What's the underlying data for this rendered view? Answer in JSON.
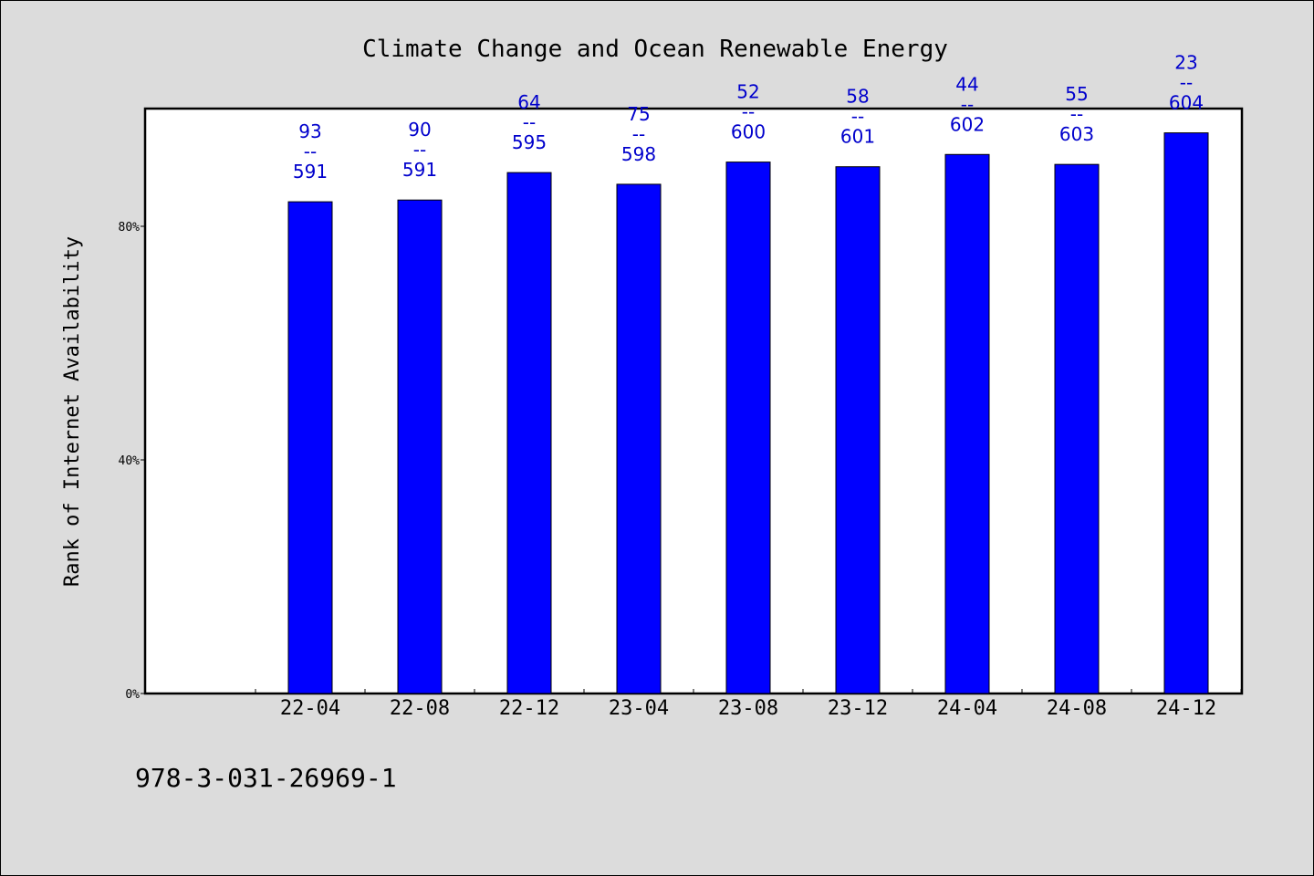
{
  "chart_data": {
    "type": "bar",
    "title": "Climate Change and Ocean Renewable Energy",
    "ylabel": "Rank of Internet Availability",
    "xlabel": "",
    "categories": [
      "22-04",
      "22-08",
      "22-12",
      "23-04",
      "23-08",
      "23-12",
      "24-04",
      "24-08",
      "24-12"
    ],
    "values": [
      84.2,
      84.5,
      89.2,
      87.2,
      91.0,
      90.2,
      92.3,
      90.6,
      96.0
    ],
    "data_labels": [
      {
        "top": "93",
        "sep": "--",
        "bottom": "591"
      },
      {
        "top": "90",
        "sep": "--",
        "bottom": "591"
      },
      {
        "top": "64",
        "sep": "--",
        "bottom": "595"
      },
      {
        "top": "75",
        "sep": "--",
        "bottom": "598"
      },
      {
        "top": "52",
        "sep": "--",
        "bottom": "600"
      },
      {
        "top": "58",
        "sep": "--",
        "bottom": "601"
      },
      {
        "top": "44",
        "sep": "--",
        "bottom": "602"
      },
      {
        "top": "55",
        "sep": "--",
        "bottom": "603"
      },
      {
        "top": "23",
        "sep": "--",
        "bottom": "604"
      }
    ],
    "ylim": [
      0,
      100
    ],
    "yticks": [
      0,
      40,
      80
    ],
    "ytick_labels": [
      "0%",
      "40%",
      "80%"
    ],
    "grid": false,
    "colors": {
      "bar": "#0000ff",
      "data_label": "#0000cc",
      "plot_bg": "#ffffff",
      "page_bg": "#dcdcdc"
    }
  },
  "footer": {
    "isbn": "978-3-031-26969-1"
  }
}
